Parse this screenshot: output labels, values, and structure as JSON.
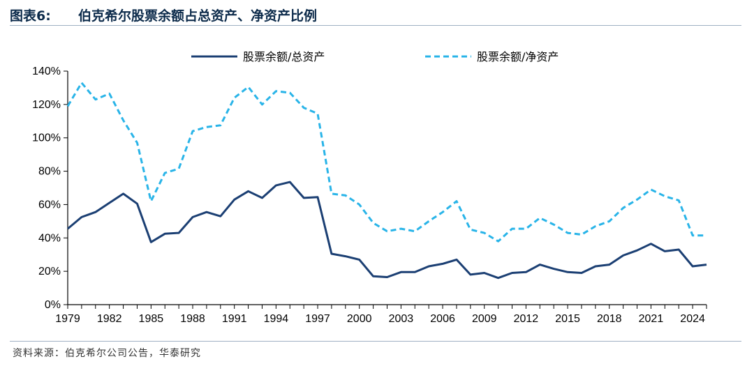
{
  "header": {
    "figure_label": "图表6:",
    "title": "伯克希尔股票余额占总资产、净资产比例"
  },
  "footer": {
    "source": "资料来源：伯克希尔公司公告，华泰研究"
  },
  "chart_data": {
    "type": "line",
    "title": "伯克希尔股票余额占总资产、净资产比例",
    "xlabel": "",
    "ylabel": "",
    "xlim": [
      1979,
      2025
    ],
    "ylim": [
      0,
      140
    ],
    "y_ticks": [
      "0%",
      "20%",
      "40%",
      "60%",
      "80%",
      "100%",
      "120%",
      "140%"
    ],
    "x_ticks": [
      "1979",
      "1982",
      "1985",
      "1988",
      "1991",
      "1994",
      "1997",
      "2000",
      "2003",
      "2006",
      "2009",
      "2012",
      "2015",
      "2018",
      "2021",
      "2024"
    ],
    "grid": false,
    "legend_position": "top",
    "x": [
      1979,
      1980,
      1981,
      1982,
      1983,
      1984,
      1985,
      1986,
      1987,
      1988,
      1989,
      1990,
      1991,
      1992,
      1993,
      1994,
      1995,
      1996,
      1997,
      1998,
      1999,
      2000,
      2001,
      2002,
      2003,
      2004,
      2005,
      2006,
      2007,
      2008,
      2009,
      2010,
      2011,
      2012,
      2013,
      2014,
      2015,
      2016,
      2017,
      2018,
      2019,
      2020,
      2021,
      2022,
      2023,
      2024,
      2025
    ],
    "series": [
      {
        "name": "股票余额/总资产",
        "color": "#1b3f73",
        "style": "solid",
        "values": [
          45.5,
          52.5,
          55.5,
          61,
          66.5,
          60.5,
          37.5,
          42.5,
          43,
          52.5,
          55.5,
          53,
          63,
          68,
          64,
          71.5,
          73.5,
          64,
          64.5,
          30.5,
          29,
          27,
          17,
          16.5,
          19.5,
          19.5,
          23,
          24.5,
          27,
          18,
          19,
          16,
          19,
          19.5,
          24,
          21.5,
          19.5,
          19,
          23,
          24,
          29.5,
          32.5,
          36.5,
          32,
          33,
          23,
          24
        ]
      },
      {
        "name": "股票余额/净资产",
        "color": "#29b4e8",
        "style": "dashed",
        "values": [
          119,
          133,
          123,
          126.5,
          110.5,
          97,
          62,
          79,
          81.5,
          104,
          106.5,
          107.5,
          124,
          130.5,
          120,
          128,
          127,
          118,
          114.5,
          66.5,
          65.5,
          60,
          49,
          44,
          45.5,
          44,
          50,
          55.5,
          62,
          45,
          43,
          38,
          45.5,
          45.5,
          52,
          48,
          43,
          42,
          47,
          50,
          58,
          63,
          69,
          65,
          62.5,
          41.5,
          41.5
        ]
      }
    ]
  }
}
